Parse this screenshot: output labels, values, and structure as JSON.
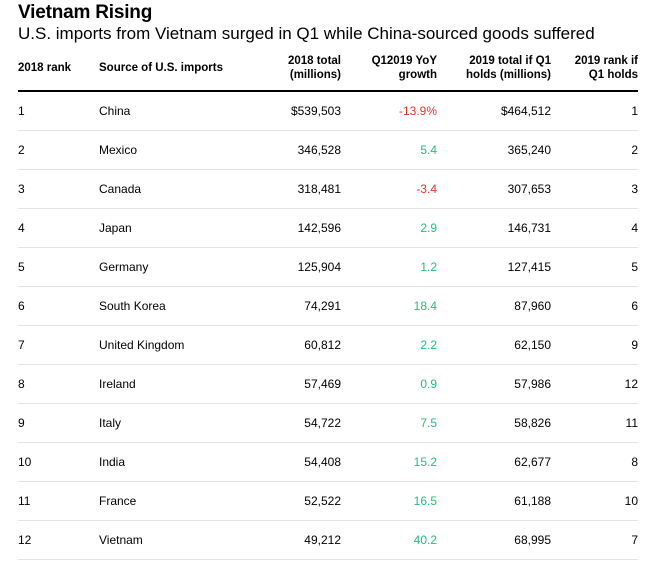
{
  "title": "Vietnam Rising",
  "subtitle": "U.S. imports from Vietnam surged in Q1 while China-sourced goods suffered",
  "colors": {
    "negative": "#e5332a",
    "positive": "#1fbf7a",
    "rule": "#000000",
    "row_divider": "#e3e3e3"
  },
  "table": {
    "headers": {
      "rank_2018": "2018 rank",
      "source": "Source of U.S. imports",
      "total_2018_line1": "2018 total",
      "total_2018_line2": "(millions)",
      "growth_line1": "Q12019 YoY",
      "growth_line2": "growth",
      "total_2019_line1": "2019 total if Q1",
      "total_2019_line2": "holds (millions)",
      "rank_2019_line1": "2019 rank if",
      "rank_2019_line2": "Q1 holds"
    },
    "rows": [
      {
        "rank": "1",
        "source": "China",
        "total_2018": "$539,503",
        "growth": "-13.9%",
        "total_2019": "$464,512",
        "rank_2019": "1"
      },
      {
        "rank": "2",
        "source": "Mexico",
        "total_2018": "346,528",
        "growth": "5.4",
        "total_2019": "365,240",
        "rank_2019": "2"
      },
      {
        "rank": "3",
        "source": "Canada",
        "total_2018": "318,481",
        "growth": "-3.4",
        "total_2019": "307,653",
        "rank_2019": "3"
      },
      {
        "rank": "4",
        "source": "Japan",
        "total_2018": "142,596",
        "growth": "2.9",
        "total_2019": "146,731",
        "rank_2019": "4"
      },
      {
        "rank": "5",
        "source": "Germany",
        "total_2018": "125,904",
        "growth": "1.2",
        "total_2019": "127,415",
        "rank_2019": "5"
      },
      {
        "rank": "6",
        "source": "South Korea",
        "total_2018": "74,291",
        "growth": "18.4",
        "total_2019": "87,960",
        "rank_2019": "6"
      },
      {
        "rank": "7",
        "source": "United Kingdom",
        "total_2018": "60,812",
        "growth": "2.2",
        "total_2019": "62,150",
        "rank_2019": "9"
      },
      {
        "rank": "8",
        "source": "Ireland",
        "total_2018": "57,469",
        "growth": "0.9",
        "total_2019": "57,986",
        "rank_2019": "12"
      },
      {
        "rank": "9",
        "source": "Italy",
        "total_2018": "54,722",
        "growth": "7.5",
        "total_2019": "58,826",
        "rank_2019": "11"
      },
      {
        "rank": "10",
        "source": "India",
        "total_2018": "54,408",
        "growth": "15.2",
        "total_2019": "62,677",
        "rank_2019": "8"
      },
      {
        "rank": "11",
        "source": "France",
        "total_2018": "52,522",
        "growth": "16.5",
        "total_2019": "61,188",
        "rank_2019": "10"
      },
      {
        "rank": "12",
        "source": "Vietnam",
        "total_2018": "49,212",
        "growth": "40.2",
        "total_2019": "68,995",
        "rank_2019": "7"
      }
    ]
  }
}
